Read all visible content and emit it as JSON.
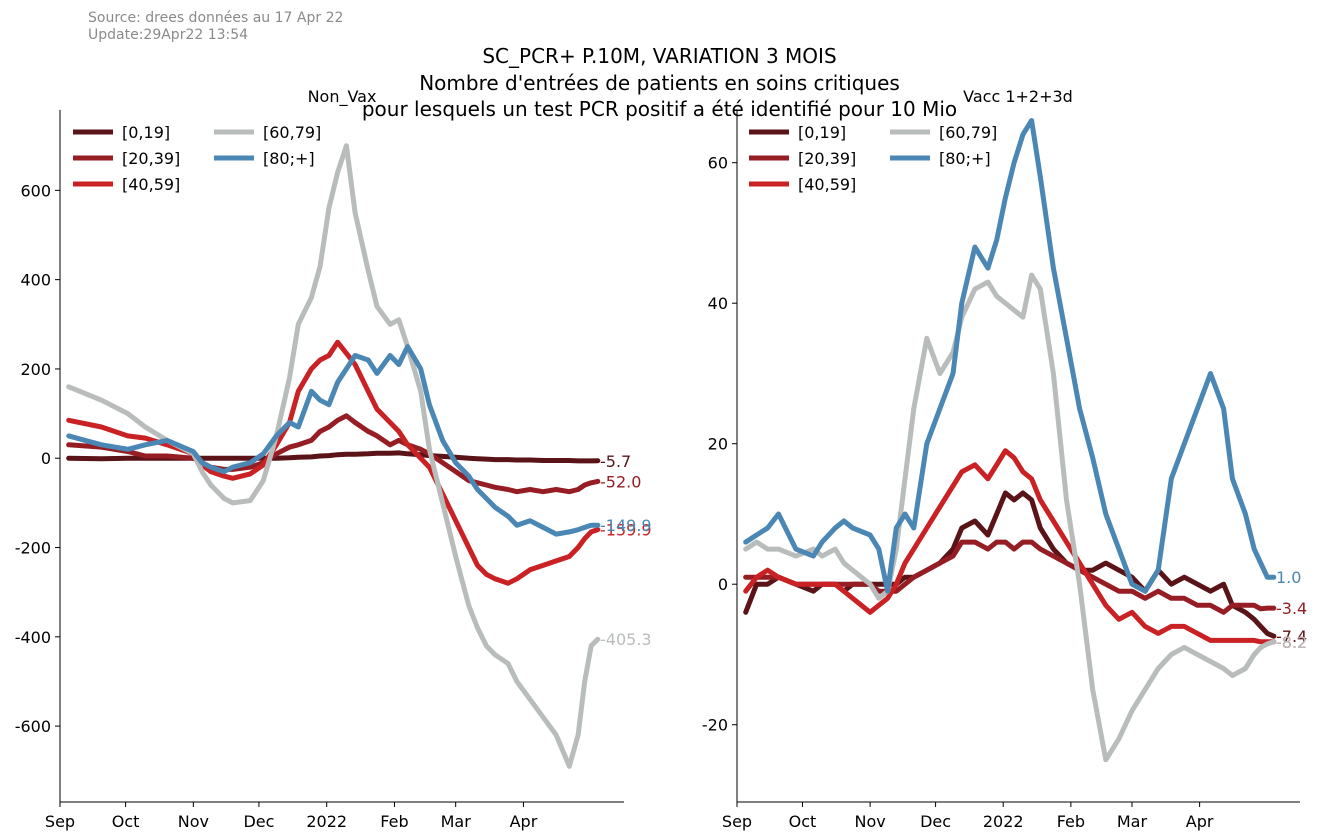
{
  "source_line": "Source: drees données au 17 Apr 22",
  "update_line": "Update:29Apr22 13:54",
  "title_lines": [
    "SC_PCR+ P.10M, VARIATION 3 MOIS",
    "Nombre d'entrées de patients en soins critiques",
    "pour lesquels un test PCR positif a été identifié pour 10 Mio"
  ],
  "chart_data": [
    {
      "type": "line",
      "title": "Non_Vax",
      "x_ticks": [
        "Sep",
        "Oct",
        "Nov",
        "Dec",
        "2022",
        "Feb",
        "Mar",
        "Apr"
      ],
      "y_ticks": [
        "600",
        "400",
        "200",
        "0",
        "-200",
        "-400",
        "-600"
      ],
      "y_tick_values": [
        600,
        400,
        200,
        0,
        -200,
        -400,
        -600
      ],
      "ylim": [
        -770,
        780
      ],
      "x_unit": "days since 2021-08-01",
      "xlim": [
        31,
        289
      ],
      "x": [
        35,
        50,
        62,
        70,
        80,
        92,
        96,
        100,
        106,
        110,
        118,
        124,
        130,
        136,
        140,
        146,
        150,
        154,
        158,
        162,
        166,
        172,
        176,
        182,
        186,
        190,
        196,
        200,
        206,
        212,
        218,
        222,
        226,
        230,
        236,
        240,
        246,
        252,
        258,
        264,
        268,
        271,
        274,
        277
      ],
      "series": [
        {
          "name": "[0,19]",
          "color": "#5a1418",
          "end_label": "-5.7",
          "values": [
            0,
            -1,
            0,
            0,
            0,
            0,
            0,
            0,
            0,
            0,
            0,
            0,
            0,
            1,
            2,
            3,
            5,
            6,
            8,
            9,
            9,
            10,
            11,
            11,
            12,
            10,
            8,
            6,
            4,
            2,
            0,
            -1,
            -2,
            -3,
            -3,
            -4,
            -4,
            -5,
            -5,
            -5,
            -6,
            -6,
            -6,
            -5.7
          ]
        },
        {
          "name": "[20,39]",
          "color": "#951d23",
          "end_label": "-52.0",
          "values": [
            30,
            25,
            15,
            5,
            5,
            0,
            -10,
            -20,
            -25,
            -25,
            -20,
            -10,
            10,
            25,
            30,
            40,
            60,
            70,
            85,
            95,
            80,
            60,
            50,
            30,
            40,
            30,
            20,
            10,
            -10,
            -30,
            -50,
            -55,
            -60,
            -65,
            -70,
            -75,
            -70,
            -75,
            -70,
            -75,
            -70,
            -60,
            -55,
            -52
          ]
        },
        {
          "name": "[40,59]",
          "color": "#c92124",
          "end_label": "-159.9",
          "values": [
            85,
            70,
            50,
            45,
            30,
            10,
            -15,
            -30,
            -40,
            -45,
            -35,
            -15,
            30,
            80,
            150,
            200,
            220,
            230,
            260,
            235,
            210,
            150,
            110,
            80,
            60,
            30,
            0,
            -20,
            -80,
            -140,
            -200,
            -240,
            -260,
            -270,
            -280,
            -270,
            -250,
            -240,
            -230,
            -220,
            -200,
            -180,
            -165,
            -159.9
          ]
        },
        {
          "name": "[60,79]",
          "color": "#b8bcbb",
          "end_label": "-405.3",
          "values": [
            160,
            130,
            100,
            70,
            40,
            10,
            -30,
            -60,
            -90,
            -100,
            -95,
            -50,
            50,
            180,
            300,
            360,
            430,
            560,
            640,
            700,
            550,
            420,
            340,
            300,
            310,
            250,
            150,
            20,
            -100,
            -220,
            -330,
            -380,
            -420,
            -440,
            -460,
            -500,
            -540,
            -580,
            -620,
            -690,
            -620,
            -500,
            -420,
            -405.3
          ]
        },
        {
          "name": "[80;+]",
          "color": "#4a87b4",
          "end_label": "-149.9",
          "values": [
            50,
            30,
            20,
            30,
            40,
            15,
            -10,
            -20,
            -30,
            -20,
            -10,
            10,
            50,
            80,
            70,
            150,
            130,
            120,
            170,
            200,
            230,
            220,
            190,
            230,
            210,
            250,
            200,
            120,
            40,
            -10,
            -40,
            -70,
            -90,
            -110,
            -130,
            -150,
            -140,
            -155,
            -170,
            -165,
            -160,
            -155,
            -150,
            -149.9
          ]
        }
      ],
      "legend": {
        "placement": "top-left"
      }
    },
    {
      "type": "line",
      "title": "Vacc 1+2+3d",
      "x_ticks": [
        "Sep",
        "Oct",
        "Nov",
        "Dec",
        "2022",
        "Feb",
        "Mar",
        "Apr"
      ],
      "y_ticks": [
        "60",
        "40",
        "20",
        "0",
        "-20"
      ],
      "y_tick_values": [
        60,
        40,
        20,
        0,
        -20
      ],
      "ylim": [
        -31,
        67.5
      ],
      "x_unit": "days since 2021-08-01",
      "xlim": [
        31,
        289
      ],
      "x": [
        35,
        40,
        45,
        50,
        58,
        66,
        70,
        76,
        80,
        84,
        92,
        96,
        100,
        104,
        108,
        112,
        118,
        124,
        130,
        134,
        140,
        146,
        150,
        154,
        158,
        162,
        166,
        170,
        176,
        182,
        188,
        194,
        200,
        206,
        212,
        218,
        224,
        230,
        236,
        242,
        248,
        254,
        258,
        264,
        268,
        271,
        274,
        277
      ],
      "series": [
        {
          "name": "[0,19]",
          "color": "#5a1418",
          "end_label": "-7.4",
          "values": [
            -4,
            0,
            0,
            1,
            0,
            -1,
            0,
            0,
            -1,
            0,
            0,
            0,
            0,
            0,
            1,
            1,
            2,
            3,
            5,
            8,
            9,
            7,
            10,
            13,
            12,
            13,
            12,
            8,
            5,
            3,
            2,
            2,
            3,
            2,
            1,
            -1,
            2,
            0,
            1,
            0,
            -1,
            0,
            -3,
            -4,
            -5,
            -6,
            -7,
            -7.4
          ]
        },
        {
          "name": "[20,39]",
          "color": "#951d23",
          "end_label": "-3.4",
          "values": [
            1,
            1,
            1,
            1,
            0,
            0,
            0,
            0,
            0,
            0,
            0,
            -1,
            -1,
            -1,
            0,
            1,
            2,
            3,
            4,
            6,
            6,
            5,
            6,
            6,
            5,
            6,
            6,
            5,
            4,
            3,
            2,
            1,
            0,
            -1,
            -1,
            -2,
            -1,
            -2,
            -2,
            -3,
            -3,
            -4,
            -3,
            -3,
            -3,
            -3.5,
            -3.4,
            -3.4
          ]
        },
        {
          "name": "[40,59]",
          "color": "#c92124",
          "end_label": "-8.2",
          "values": [
            -1,
            1,
            2,
            1,
            0,
            0,
            0,
            0,
            -1,
            -2,
            -4,
            -3,
            -2,
            0,
            3,
            5,
            8,
            11,
            14,
            16,
            17,
            15,
            17,
            19,
            18,
            16,
            15,
            12,
            9,
            6,
            3,
            0,
            -3,
            -5,
            -4,
            -6,
            -7,
            -6,
            -6,
            -7,
            -8,
            -8,
            -8,
            -8,
            -8,
            -8.2,
            -8.2,
            -8.2
          ]
        },
        {
          "name": "[60,79]",
          "color": "#b8bcbb",
          "end_label": "-8.2",
          "values": [
            5,
            6,
            5,
            5,
            4,
            5,
            4,
            5,
            3,
            2,
            0,
            -2,
            -1,
            5,
            15,
            25,
            35,
            30,
            33,
            38,
            42,
            43,
            41,
            40,
            39,
            38,
            44,
            42,
            30,
            12,
            0,
            -15,
            -25,
            -22,
            -18,
            -15,
            -12,
            -10,
            -9,
            -10,
            -11,
            -12,
            -13,
            -12,
            -10,
            -9,
            -8.5,
            -8.2
          ]
        },
        {
          "name": "[80;+]",
          "color": "#4a87b4",
          "end_label": "1.0",
          "values": [
            6,
            7,
            8,
            10,
            5,
            4,
            6,
            8,
            9,
            8,
            7,
            5,
            -1,
            8,
            10,
            8,
            20,
            25,
            30,
            40,
            48,
            45,
            49,
            55,
            60,
            64,
            66,
            58,
            45,
            35,
            25,
            18,
            10,
            5,
            0,
            -1,
            2,
            15,
            20,
            25,
            30,
            25,
            15,
            10,
            5,
            3,
            1,
            1.0
          ]
        }
      ],
      "legend": {
        "placement": "top-left"
      }
    }
  ]
}
